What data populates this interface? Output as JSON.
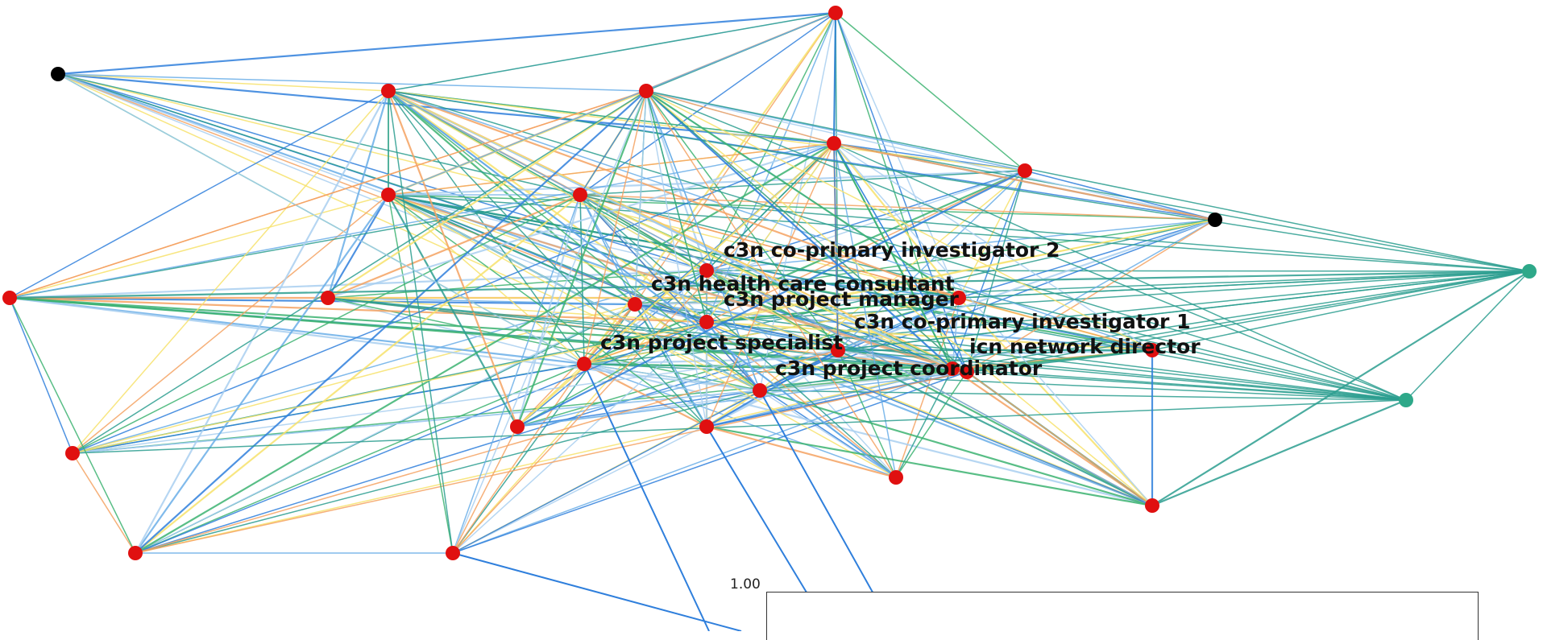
{
  "colors": {
    "node_default": "#e01010",
    "node_black": "#000000",
    "node_teal": "#2ea889",
    "edge_palette": [
      "#2f7fdc",
      "#6aaee8",
      "#a9cff0",
      "#3cb371",
      "#2b9d8f",
      "#f4a261",
      "#f7e26b"
    ]
  },
  "nodes": [
    {
      "id": "n1",
      "color": "black"
    },
    {
      "id": "n2",
      "color": "red"
    },
    {
      "id": "n3",
      "color": "red"
    },
    {
      "id": "n4",
      "color": "red"
    },
    {
      "id": "n5",
      "color": "red"
    },
    {
      "id": "n6",
      "color": "red"
    },
    {
      "id": "n7",
      "color": "red"
    },
    {
      "id": "n8",
      "color": "red"
    },
    {
      "id": "n9",
      "color": "black"
    },
    {
      "id": "n10",
      "color": "red"
    },
    {
      "id": "n11",
      "color": "red"
    },
    {
      "id": "n12",
      "color": "teal"
    },
    {
      "id": "n13",
      "color": "red",
      "label": "c3n co-primary investigator 2"
    },
    {
      "id": "n14",
      "color": "red",
      "label": "c3n health care consultant"
    },
    {
      "id": "n15",
      "color": "red",
      "label": "c3n project manager"
    },
    {
      "id": "n16",
      "color": "red",
      "label": "c3n co-primary investigator 1"
    },
    {
      "id": "n17",
      "color": "red",
      "label": "c3n project specialist"
    },
    {
      "id": "n18",
      "color": "red",
      "label": "icn network director"
    },
    {
      "id": "n19",
      "color": "red",
      "label": "c3n project coordinator"
    },
    {
      "id": "n20",
      "color": "red"
    },
    {
      "id": "n21",
      "color": "red"
    },
    {
      "id": "n22",
      "color": "red"
    },
    {
      "id": "n23",
      "color": "red"
    },
    {
      "id": "n24",
      "color": "red"
    },
    {
      "id": "n25",
      "color": "red"
    },
    {
      "id": "n26",
      "color": "red"
    },
    {
      "id": "n27",
      "color": "teal"
    },
    {
      "id": "n28",
      "color": "red"
    },
    {
      "id": "n29",
      "color": "red"
    },
    {
      "id": "n30",
      "color": "red"
    }
  ],
  "legend": {
    "tick_label": "1.00"
  }
}
